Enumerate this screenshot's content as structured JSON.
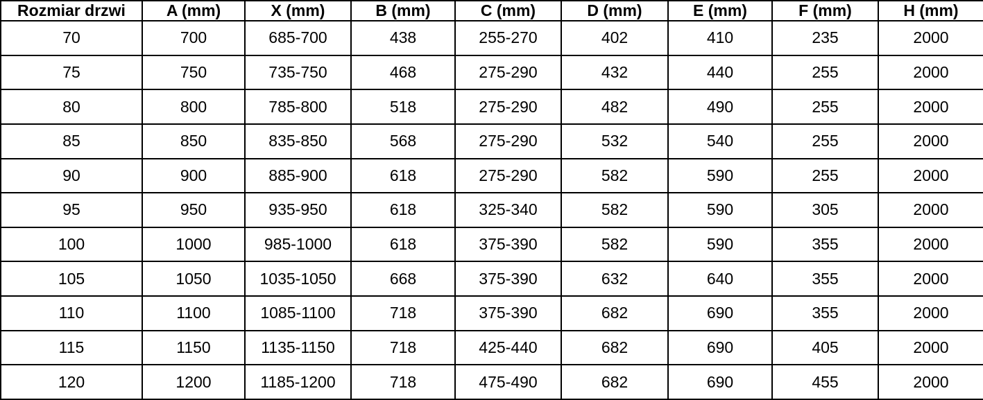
{
  "table": {
    "headers": [
      "Rozmiar drzwi",
      "A (mm)",
      "X (mm)",
      "B (mm)",
      "C (mm)",
      "D (mm)",
      "E (mm)",
      "F (mm)",
      "H (mm)"
    ],
    "rows": [
      [
        "70",
        "700",
        "685-700",
        "438",
        "255-270",
        "402",
        "410",
        "235",
        "2000"
      ],
      [
        "75",
        "750",
        "735-750",
        "468",
        "275-290",
        "432",
        "440",
        "255",
        "2000"
      ],
      [
        "80",
        "800",
        "785-800",
        "518",
        "275-290",
        "482",
        "490",
        "255",
        "2000"
      ],
      [
        "85",
        "850",
        "835-850",
        "568",
        "275-290",
        "532",
        "540",
        "255",
        "2000"
      ],
      [
        "90",
        "900",
        "885-900",
        "618",
        "275-290",
        "582",
        "590",
        "255",
        "2000"
      ],
      [
        "95",
        "950",
        "935-950",
        "618",
        "325-340",
        "582",
        "590",
        "305",
        "2000"
      ],
      [
        "100",
        "1000",
        "985-1000",
        "618",
        "375-390",
        "582",
        "590",
        "355",
        "2000"
      ],
      [
        "105",
        "1050",
        "1035-1050",
        "668",
        "375-390",
        "632",
        "640",
        "355",
        "2000"
      ],
      [
        "110",
        "1100",
        "1085-1100",
        "718",
        "375-390",
        "682",
        "690",
        "355",
        "2000"
      ],
      [
        "115",
        "1150",
        "1135-1150",
        "718",
        "425-440",
        "682",
        "690",
        "405",
        "2000"
      ],
      [
        "120",
        "1200",
        "1185-1200",
        "718",
        "475-490",
        "682",
        "690",
        "455",
        "2000"
      ]
    ]
  },
  "chart_data": {
    "type": "table",
    "title": "",
    "columns": [
      "Rozmiar drzwi",
      "A (mm)",
      "X (mm)",
      "B (mm)",
      "C (mm)",
      "D (mm)",
      "E (mm)",
      "F (mm)",
      "H (mm)"
    ],
    "rows": [
      [
        "70",
        "700",
        "685-700",
        "438",
        "255-270",
        "402",
        "410",
        "235",
        "2000"
      ],
      [
        "75",
        "750",
        "735-750",
        "468",
        "275-290",
        "432",
        "440",
        "255",
        "2000"
      ],
      [
        "80",
        "800",
        "785-800",
        "518",
        "275-290",
        "482",
        "490",
        "255",
        "2000"
      ],
      [
        "85",
        "850",
        "835-850",
        "568",
        "275-290",
        "532",
        "540",
        "255",
        "2000"
      ],
      [
        "90",
        "900",
        "885-900",
        "618",
        "275-290",
        "582",
        "590",
        "255",
        "2000"
      ],
      [
        "95",
        "950",
        "935-950",
        "618",
        "325-340",
        "582",
        "590",
        "305",
        "2000"
      ],
      [
        "100",
        "1000",
        "985-1000",
        "618",
        "375-390",
        "582",
        "590",
        "355",
        "2000"
      ],
      [
        "105",
        "1050",
        "1035-1050",
        "668",
        "375-390",
        "632",
        "640",
        "355",
        "2000"
      ],
      [
        "110",
        "1100",
        "1085-1100",
        "718",
        "375-390",
        "682",
        "690",
        "355",
        "2000"
      ],
      [
        "115",
        "1150",
        "1135-1150",
        "718",
        "425-440",
        "682",
        "690",
        "405",
        "2000"
      ],
      [
        "120",
        "1200",
        "1185-1200",
        "718",
        "475-490",
        "682",
        "690",
        "455",
        "2000"
      ]
    ]
  },
  "colors": {
    "border": "#000000",
    "text": "#000000",
    "background": "#ffffff"
  }
}
